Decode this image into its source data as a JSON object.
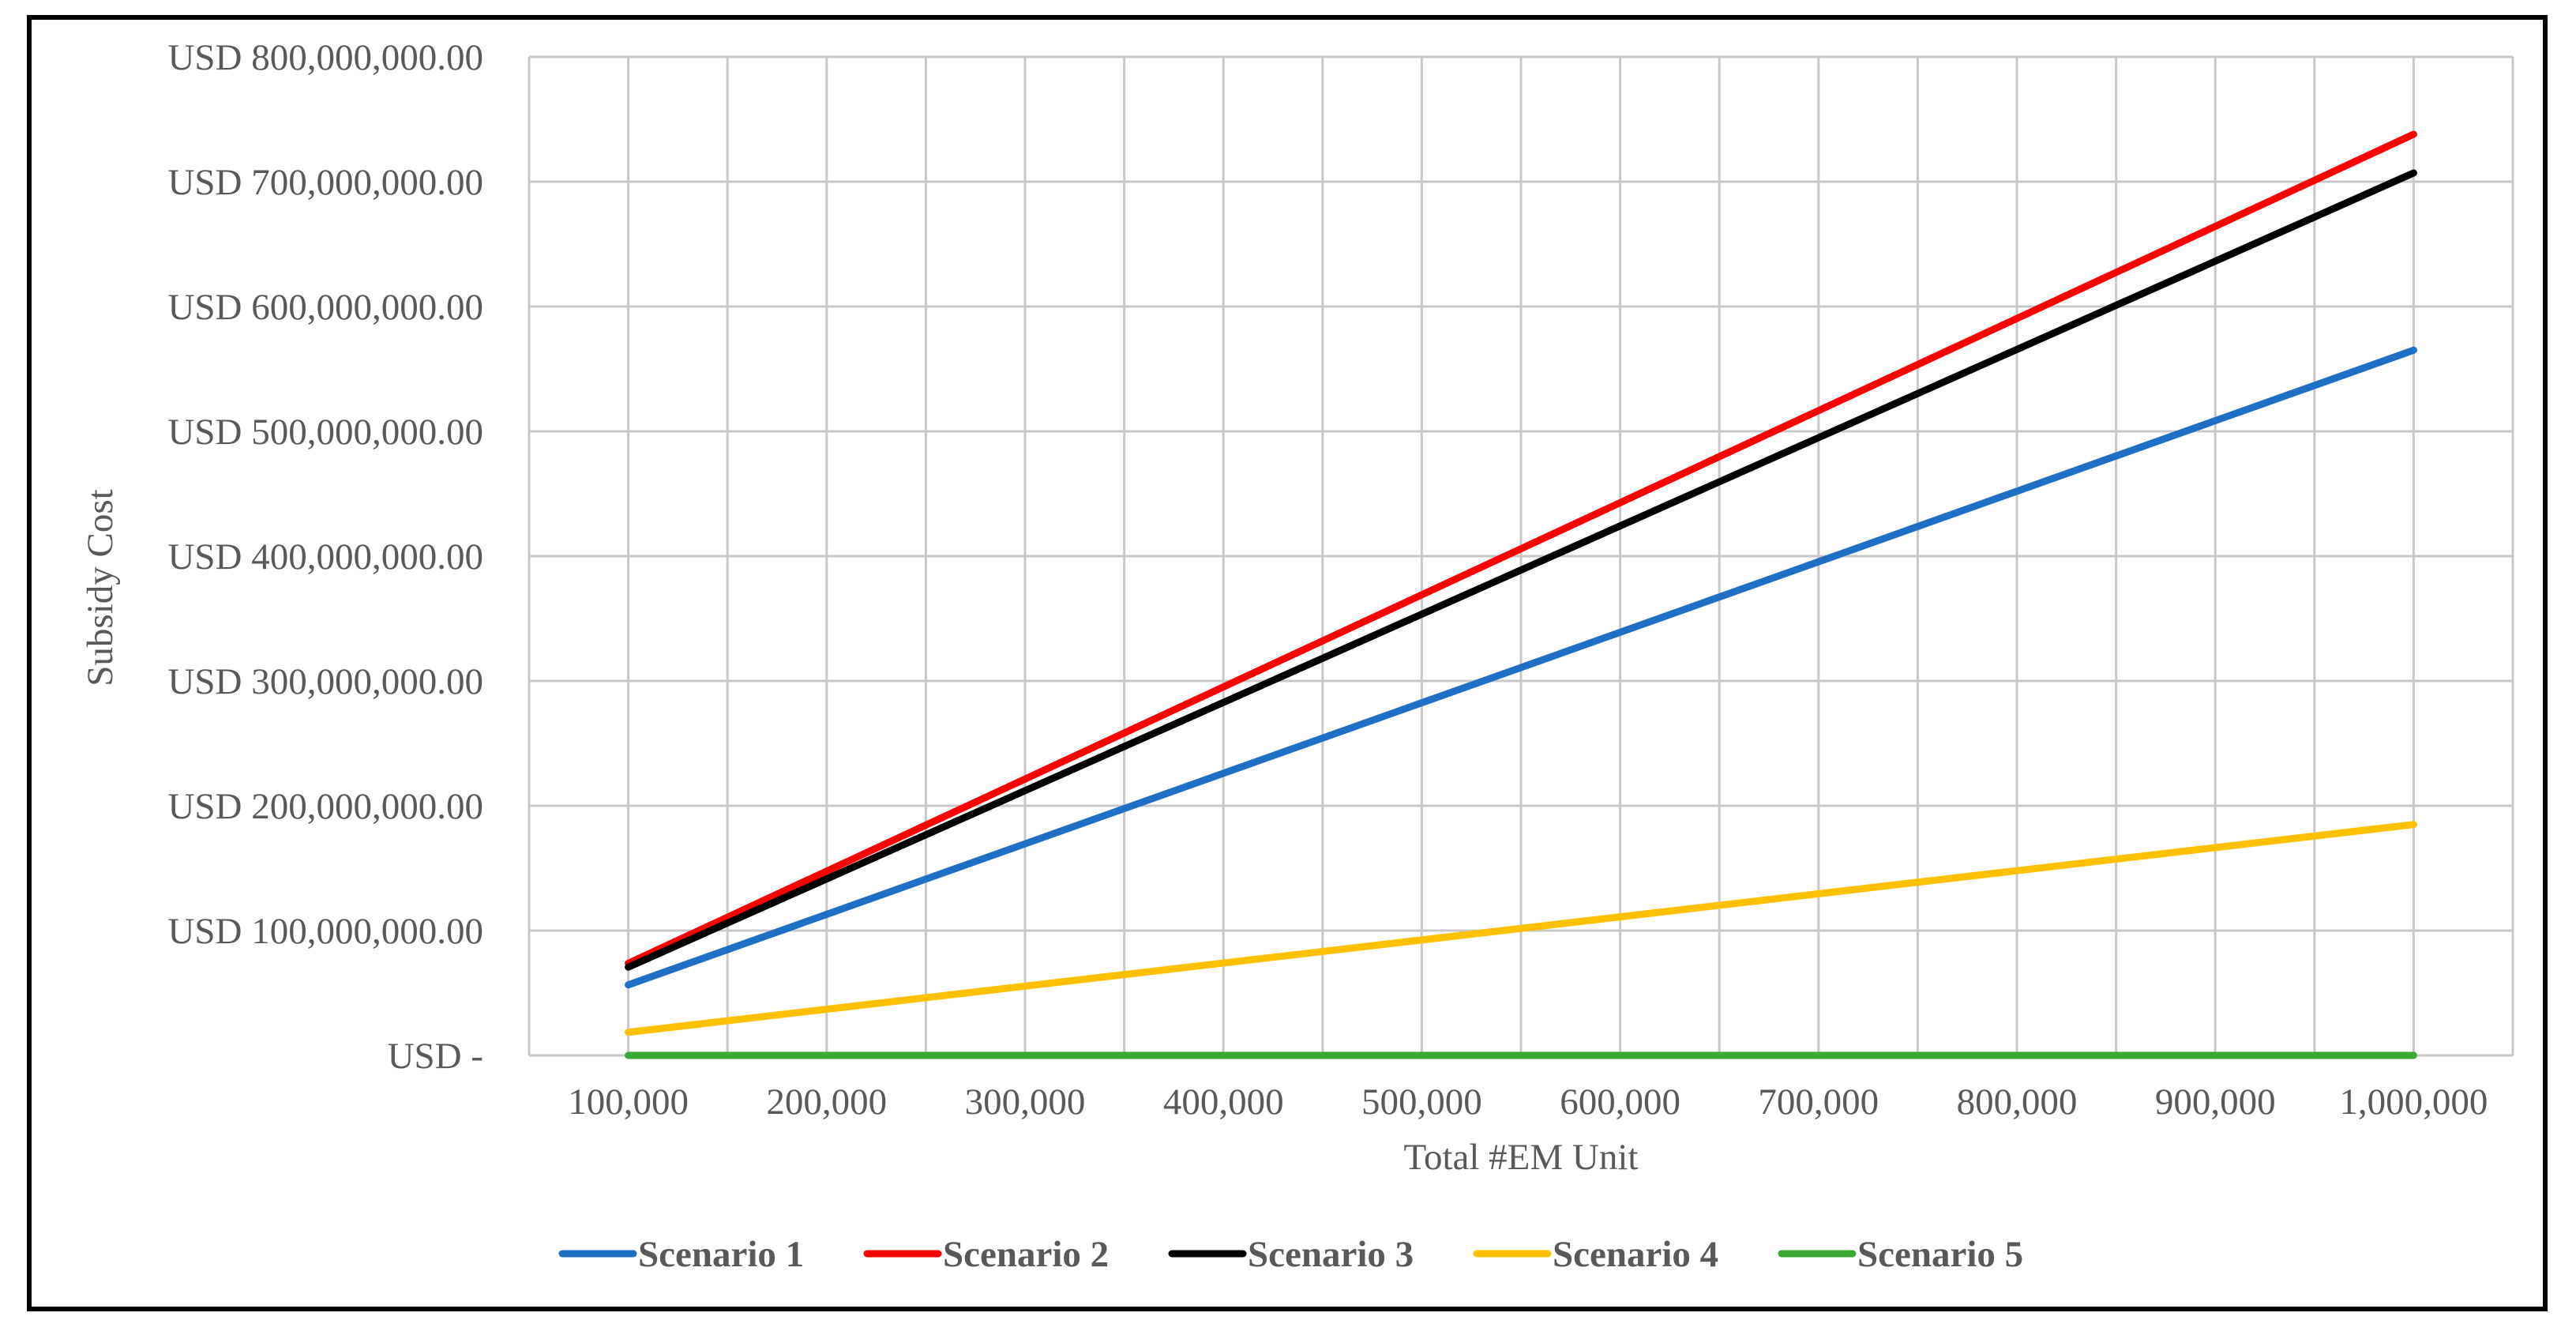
{
  "chart_data": {
    "type": "line",
    "title": "",
    "xlabel": "Total #EM Unit",
    "ylabel": "Subsidy Cost",
    "x": [
      100000,
      200000,
      300000,
      400000,
      500000,
      600000,
      700000,
      800000,
      900000,
      1000000
    ],
    "x_tick_labels": [
      "100,000",
      "200,000",
      "300,000",
      "400,000",
      "500,000",
      "600,000",
      "700,000",
      "800,000",
      "900,000",
      "1,000,000"
    ],
    "xlim": [
      50000,
      1050000
    ],
    "ylim": [
      0,
      800000000
    ],
    "y_ticks": [
      0,
      100000000,
      200000000,
      300000000,
      400000000,
      500000000,
      600000000,
      700000000,
      800000000
    ],
    "y_tick_labels": [
      "USD -",
      "USD 100,000,000.00",
      "USD 200,000,000.00",
      "USD 300,000,000.00",
      "USD 400,000,000.00",
      "USD 500,000,000.00",
      "USD 600,000,000.00",
      "USD 700,000,000.00",
      "USD 800,000,000.00"
    ],
    "grid": true,
    "legend_position": "bottom",
    "series": [
      {
        "name": "Scenario 1",
        "color": "#1f6fc5",
        "values": [
          56500000,
          113000000,
          169500000,
          226000000,
          282500000,
          339000000,
          395500000,
          452000000,
          508500000,
          565000000
        ]
      },
      {
        "name": "Scenario 2",
        "color": "#ff0000",
        "values": [
          73800000,
          147600000,
          221400000,
          295200000,
          369000000,
          442800000,
          516600000,
          590400000,
          664200000,
          738000000
        ]
      },
      {
        "name": "Scenario 3",
        "color": "#000000",
        "values": [
          70700000,
          141400000,
          212100000,
          282800000,
          353500000,
          424200000,
          494900000,
          565600000,
          636300000,
          707000000
        ]
      },
      {
        "name": "Scenario 4",
        "color": "#ffc000",
        "values": [
          18500000,
          37000000,
          55500000,
          74000000,
          92500000,
          111000000,
          129500000,
          148000000,
          166500000,
          185000000
        ]
      },
      {
        "name": "Scenario 5",
        "color": "#3aaa35",
        "values": [
          0,
          0,
          0,
          0,
          0,
          0,
          0,
          0,
          0,
          0
        ]
      }
    ]
  }
}
